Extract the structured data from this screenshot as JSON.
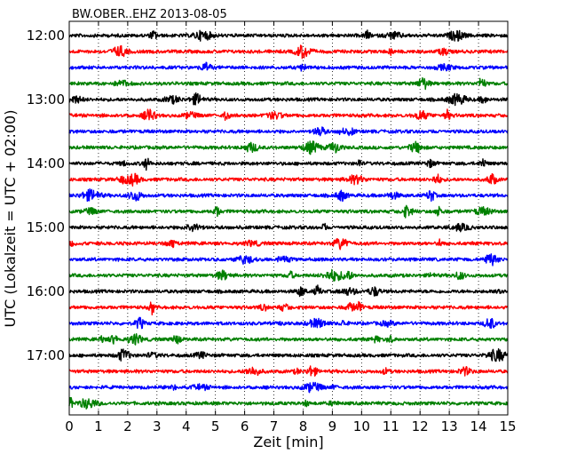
{
  "chart_data": {
    "type": "line",
    "title": "BW.OBER..EHZ 2013-08-05",
    "xlabel": "Zeit  [min]",
    "ylabel": "UTC (Lokalzeit = UTC + 02:00)",
    "xlim": [
      0,
      15
    ],
    "x_ticks": [
      "0",
      "1",
      "2",
      "3",
      "4",
      "5",
      "6",
      "7",
      "8",
      "9",
      "10",
      "11",
      "12",
      "13",
      "14",
      "15"
    ],
    "y_ticks": [
      "12:00",
      "13:00",
      "14:00",
      "15:00",
      "16:00",
      "17:00"
    ],
    "grid": {
      "x": "dotted",
      "y": "off"
    },
    "traces": {
      "start": "12:00",
      "end": "17:45",
      "interval_minutes": 15,
      "count": 24,
      "color_cycle": [
        "#000000",
        "#ff0000",
        "#0000ff",
        "#008000"
      ]
    }
  }
}
